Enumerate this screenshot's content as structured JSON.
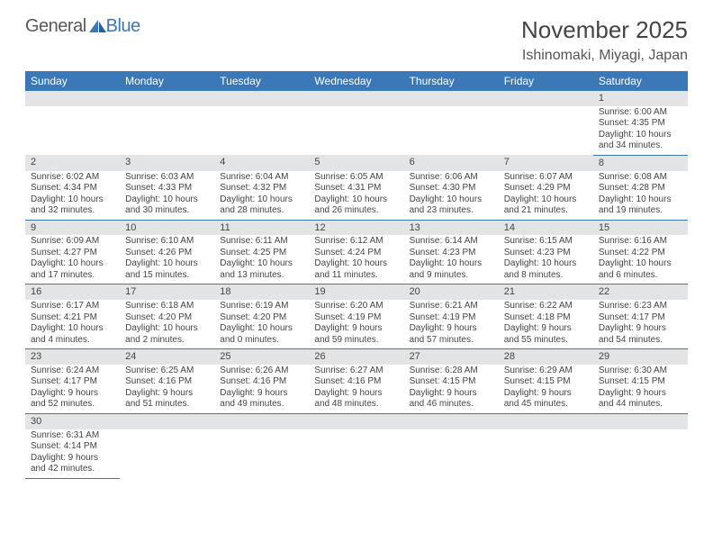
{
  "logo": {
    "text_a": "General",
    "text_b": "Blue"
  },
  "title": "November 2025",
  "location": "Ishinomaki, Miyagi, Japan",
  "colors": {
    "header_bg": "#3a78b7",
    "header_fg": "#ffffff",
    "daynum_bg": "#e3e4e5",
    "rule": "#3a78b7",
    "text": "#444444"
  },
  "day_headers": [
    "Sunday",
    "Monday",
    "Tuesday",
    "Wednesday",
    "Thursday",
    "Friday",
    "Saturday"
  ],
  "weeks": [
    [
      null,
      null,
      null,
      null,
      null,
      null,
      {
        "n": "1",
        "sunrise": "6:00 AM",
        "sunset": "4:35 PM",
        "dl": "10 hours and 34 minutes."
      }
    ],
    [
      {
        "n": "2",
        "sunrise": "6:02 AM",
        "sunset": "4:34 PM",
        "dl": "10 hours and 32 minutes."
      },
      {
        "n": "3",
        "sunrise": "6:03 AM",
        "sunset": "4:33 PM",
        "dl": "10 hours and 30 minutes."
      },
      {
        "n": "4",
        "sunrise": "6:04 AM",
        "sunset": "4:32 PM",
        "dl": "10 hours and 28 minutes."
      },
      {
        "n": "5",
        "sunrise": "6:05 AM",
        "sunset": "4:31 PM",
        "dl": "10 hours and 26 minutes."
      },
      {
        "n": "6",
        "sunrise": "6:06 AM",
        "sunset": "4:30 PM",
        "dl": "10 hours and 23 minutes."
      },
      {
        "n": "7",
        "sunrise": "6:07 AM",
        "sunset": "4:29 PM",
        "dl": "10 hours and 21 minutes."
      },
      {
        "n": "8",
        "sunrise": "6:08 AM",
        "sunset": "4:28 PM",
        "dl": "10 hours and 19 minutes."
      }
    ],
    [
      {
        "n": "9",
        "sunrise": "6:09 AM",
        "sunset": "4:27 PM",
        "dl": "10 hours and 17 minutes."
      },
      {
        "n": "10",
        "sunrise": "6:10 AM",
        "sunset": "4:26 PM",
        "dl": "10 hours and 15 minutes."
      },
      {
        "n": "11",
        "sunrise": "6:11 AM",
        "sunset": "4:25 PM",
        "dl": "10 hours and 13 minutes."
      },
      {
        "n": "12",
        "sunrise": "6:12 AM",
        "sunset": "4:24 PM",
        "dl": "10 hours and 11 minutes."
      },
      {
        "n": "13",
        "sunrise": "6:14 AM",
        "sunset": "4:23 PM",
        "dl": "10 hours and 9 minutes."
      },
      {
        "n": "14",
        "sunrise": "6:15 AM",
        "sunset": "4:23 PM",
        "dl": "10 hours and 8 minutes."
      },
      {
        "n": "15",
        "sunrise": "6:16 AM",
        "sunset": "4:22 PM",
        "dl": "10 hours and 6 minutes."
      }
    ],
    [
      {
        "n": "16",
        "sunrise": "6:17 AM",
        "sunset": "4:21 PM",
        "dl": "10 hours and 4 minutes."
      },
      {
        "n": "17",
        "sunrise": "6:18 AM",
        "sunset": "4:20 PM",
        "dl": "10 hours and 2 minutes."
      },
      {
        "n": "18",
        "sunrise": "6:19 AM",
        "sunset": "4:20 PM",
        "dl": "10 hours and 0 minutes."
      },
      {
        "n": "19",
        "sunrise": "6:20 AM",
        "sunset": "4:19 PM",
        "dl": "9 hours and 59 minutes."
      },
      {
        "n": "20",
        "sunrise": "6:21 AM",
        "sunset": "4:19 PM",
        "dl": "9 hours and 57 minutes."
      },
      {
        "n": "21",
        "sunrise": "6:22 AM",
        "sunset": "4:18 PM",
        "dl": "9 hours and 55 minutes."
      },
      {
        "n": "22",
        "sunrise": "6:23 AM",
        "sunset": "4:17 PM",
        "dl": "9 hours and 54 minutes."
      }
    ],
    [
      {
        "n": "23",
        "sunrise": "6:24 AM",
        "sunset": "4:17 PM",
        "dl": "9 hours and 52 minutes."
      },
      {
        "n": "24",
        "sunrise": "6:25 AM",
        "sunset": "4:16 PM",
        "dl": "9 hours and 51 minutes."
      },
      {
        "n": "25",
        "sunrise": "6:26 AM",
        "sunset": "4:16 PM",
        "dl": "9 hours and 49 minutes."
      },
      {
        "n": "26",
        "sunrise": "6:27 AM",
        "sunset": "4:16 PM",
        "dl": "9 hours and 48 minutes."
      },
      {
        "n": "27",
        "sunrise": "6:28 AM",
        "sunset": "4:15 PM",
        "dl": "9 hours and 46 minutes."
      },
      {
        "n": "28",
        "sunrise": "6:29 AM",
        "sunset": "4:15 PM",
        "dl": "9 hours and 45 minutes."
      },
      {
        "n": "29",
        "sunrise": "6:30 AM",
        "sunset": "4:15 PM",
        "dl": "9 hours and 44 minutes."
      }
    ],
    [
      {
        "n": "30",
        "sunrise": "6:31 AM",
        "sunset": "4:14 PM",
        "dl": "9 hours and 42 minutes."
      },
      null,
      null,
      null,
      null,
      null,
      null
    ]
  ],
  "labels": {
    "sunrise": "Sunrise: ",
    "sunset": "Sunset: ",
    "daylight": "Daylight: "
  }
}
